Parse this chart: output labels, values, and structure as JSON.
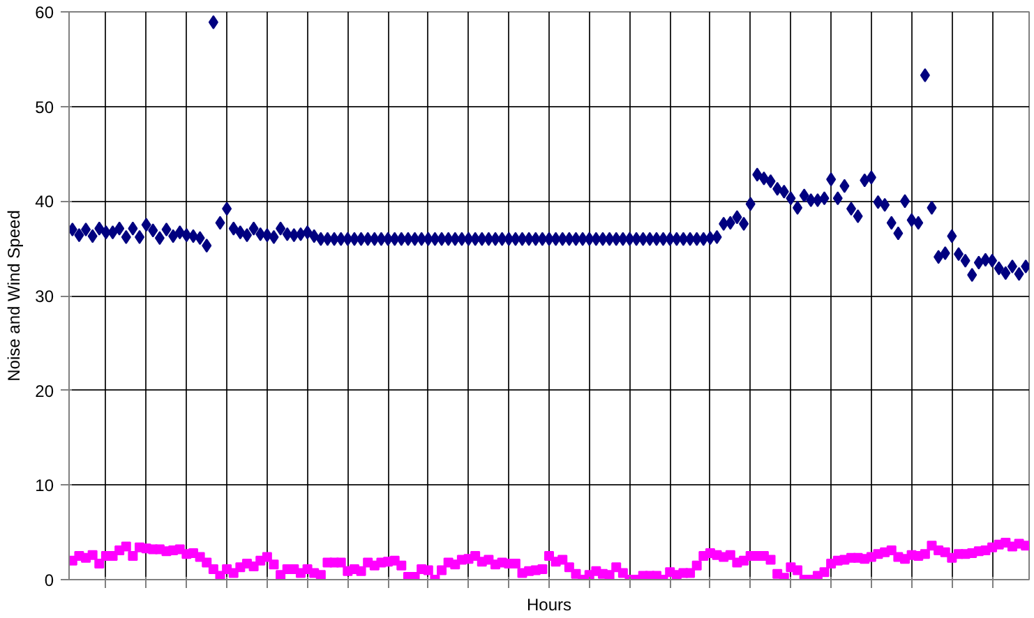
{
  "chart_data": {
    "type": "scatter",
    "xlabel": "Hours",
    "ylabel": "Noise and Wind Speed",
    "categories": [
      null,
      null,
      null,
      null,
      null,
      null,
      null,
      null,
      null,
      null,
      null,
      null,
      null,
      null,
      null,
      null,
      null,
      null,
      null,
      null,
      null,
      null,
      null,
      null,
      null,
      null,
      null,
      null,
      null,
      null,
      null,
      null,
      null,
      null,
      null,
      null,
      null,
      null,
      null,
      null,
      null,
      null,
      null,
      null,
      null,
      null,
      null,
      null,
      null,
      null,
      null,
      null,
      null,
      null,
      null,
      null,
      null,
      null,
      null,
      null,
      null,
      null,
      null,
      null,
      null,
      null,
      null,
      null,
      null,
      null,
      null,
      null,
      null,
      null,
      null,
      null,
      null,
      null,
      null,
      null,
      null,
      null,
      null,
      null,
      null,
      null,
      null,
      null,
      null,
      null,
      null,
      null,
      null,
      null,
      null,
      null,
      null,
      null,
      null,
      null,
      null,
      null,
      null,
      null,
      null,
      null,
      null,
      null,
      null,
      null,
      null,
      null,
      null,
      null,
      null,
      null,
      null,
      null,
      null,
      null,
      null,
      null,
      null,
      null,
      null,
      null,
      null,
      null,
      null,
      null,
      null,
      null,
      null,
      null,
      null,
      null,
      null,
      null,
      null,
      null,
      null,
      null,
      null
    ],
    "ylim": [
      0,
      60
    ],
    "yticks": [
      0,
      10,
      20,
      30,
      40,
      50,
      60
    ],
    "tick_labels": "y",
    "grid": true,
    "series": [
      {
        "color": "#000080",
        "marker": "diamond",
        "values": [
          37.0,
          36.4,
          37.0,
          36.3,
          37.1,
          36.7,
          36.7,
          37.1,
          36.2,
          37.1,
          36.2,
          37.5,
          36.9,
          36.1,
          37.0,
          36.3,
          36.7,
          36.4,
          36.3,
          36.1,
          35.3,
          58.9,
          37.7,
          39.2,
          37.1,
          36.7,
          36.4,
          37.1,
          36.5,
          36.4,
          36.2,
          37.1,
          36.5,
          36.4,
          36.5,
          36.7,
          36.3,
          36.0,
          36.0,
          36.0,
          36.0,
          36.0,
          36.0,
          36.0,
          36.0,
          36.0,
          36.0,
          36.0,
          36.0,
          36.0,
          36.0,
          36.0,
          36.0,
          36.0,
          36.0,
          36.0,
          36.0,
          36.0,
          36.0,
          36.0,
          36.0,
          36.0,
          36.0,
          36.0,
          36.0,
          36.0,
          36.0,
          36.0,
          36.0,
          36.0,
          36.0,
          36.0,
          36.0,
          36.0,
          36.0,
          36.0,
          36.0,
          36.0,
          36.0,
          36.0,
          36.0,
          36.0,
          36.0,
          36.0,
          36.0,
          36.0,
          36.0,
          36.0,
          36.0,
          36.0,
          36.0,
          36.0,
          36.0,
          36.0,
          36.0,
          36.1,
          36.2,
          37.6,
          37.7,
          38.3,
          37.6,
          39.7,
          42.8,
          42.4,
          42.1,
          41.3,
          41.0,
          40.3,
          39.3,
          40.6,
          40.1,
          40.1,
          40.3,
          42.3,
          40.3,
          41.6,
          39.2,
          38.4,
          42.2,
          42.5,
          39.9,
          39.6,
          37.7,
          36.6,
          40.0,
          38.0,
          37.7,
          53.3,
          39.3,
          34.1,
          34.5,
          36.3,
          34.4,
          33.7,
          32.2,
          33.5,
          33.8,
          33.7,
          32.9,
          32.4,
          33.1,
          32.3,
          33.1
        ]
      },
      {
        "color": "#ff00ff",
        "marker": "square",
        "values": [
          2.0,
          2.5,
          2.3,
          2.6,
          1.7,
          2.5,
          2.5,
          3.1,
          3.5,
          2.5,
          3.4,
          3.3,
          3.2,
          3.2,
          3.0,
          3.1,
          3.2,
          2.7,
          2.8,
          2.4,
          1.8,
          1.1,
          0.4,
          1.1,
          0.7,
          1.3,
          1.7,
          1.4,
          2.0,
          2.4,
          1.6,
          0.5,
          1.1,
          1.1,
          0.7,
          1.1,
          0.7,
          0.5,
          1.8,
          1.8,
          1.8,
          0.9,
          1.1,
          0.9,
          1.8,
          1.5,
          1.8,
          1.9,
          2.0,
          1.5,
          0.3,
          0.3,
          1.1,
          1.0,
          0.0,
          1.0,
          1.8,
          1.6,
          2.1,
          2.2,
          2.5,
          1.9,
          2.1,
          1.6,
          1.8,
          1.7,
          1.7,
          0.7,
          0.9,
          1.0,
          1.1,
          2.5,
          1.9,
          2.1,
          1.3,
          0.6,
          0.0,
          0.5,
          0.9,
          0.6,
          0.5,
          1.3,
          0.7,
          0.0,
          0.0,
          0.4,
          0.4,
          0.4,
          0.0,
          0.8,
          0.5,
          0.7,
          0.7,
          1.5,
          2.5,
          2.8,
          2.6,
          2.4,
          2.6,
          1.8,
          2.0,
          2.5,
          2.5,
          2.5,
          2.1,
          0.6,
          0.2,
          1.3,
          1.0,
          0.0,
          0.0,
          0.4,
          0.8,
          1.7,
          2.0,
          2.1,
          2.3,
          2.3,
          2.2,
          2.4,
          2.7,
          2.9,
          3.1,
          2.4,
          2.2,
          2.6,
          2.5,
          2.7,
          3.6,
          3.1,
          2.9,
          2.3,
          2.7,
          2.7,
          2.8,
          3.0,
          3.1,
          3.4,
          3.7,
          3.9,
          3.5,
          3.8,
          3.6
        ]
      }
    ]
  }
}
